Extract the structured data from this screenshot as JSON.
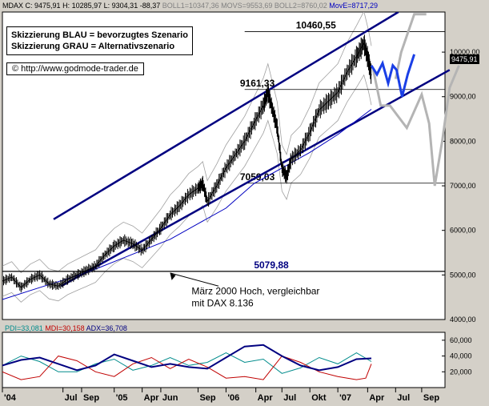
{
  "header": {
    "symbol": "MDAX",
    "close": "C: 9475,91",
    "high": "H: 10285,97",
    "low": "L: 9304,31",
    "change": "-88,37",
    "boll1": "BOLL1=10347,36",
    "movs": "MOVS=9553,69",
    "boll2": "BOLL2=8760,02",
    "move": "MovE=8717,29"
  },
  "legend": {
    "line1": "Skizzierung BLAU = bevorzugtes Szenario",
    "line2": "Skizzierung GRAU = Alternativszenario"
  },
  "source": "© http://www.godmode-trader.de",
  "last_price": "9475,91",
  "indicator_header": {
    "pdi": "PDI=33,081",
    "mdi": "MDI=30,158",
    "adx": "ADX=36,708"
  },
  "colors": {
    "background": "#d4d0c8",
    "price": "#000000",
    "boll": "#a0a0a0",
    "ma_long": "#0000c0",
    "channel": "#000080",
    "scenario_blue": "#1a3fe6",
    "scenario_gray": "#b4b4b4",
    "pdi": "#008c8c",
    "mdi": "#c00000",
    "adx": "#000080"
  },
  "chart_data": {
    "type": "line",
    "price_axis": {
      "ticks": [
        "10000,00",
        "9000,00",
        "8000,00",
        "7000,00",
        "6000,00",
        "5000,00",
        "4000,00"
      ],
      "tick_values": [
        10000,
        9000,
        8000,
        7000,
        6000,
        5000,
        4000
      ],
      "range": [
        4000,
        10900
      ]
    },
    "time_axis": {
      "labels": [
        "'04",
        "Jul",
        "Sep",
        "'05",
        "Apr",
        "Jun",
        "Sep",
        "'06",
        "Apr",
        "Jul",
        "Okt",
        "'07",
        "Apr",
        "Jul",
        "Sep"
      ],
      "label_t": [
        0,
        6.5,
        8.5,
        12,
        15,
        17,
        21,
        24,
        27.2,
        30,
        33,
        36,
        39.2,
        42.2,
        45
      ],
      "range": [
        0,
        47.5
      ]
    },
    "price_series": [
      {
        "t": 0,
        "v": 4860
      },
      {
        "t": 1,
        "v": 4950
      },
      {
        "t": 2,
        "v": 4720
      },
      {
        "t": 3,
        "v": 4900
      },
      {
        "t": 4,
        "v": 5000
      },
      {
        "t": 5,
        "v": 4800
      },
      {
        "t": 6,
        "v": 4750
      },
      {
        "t": 7,
        "v": 4900
      },
      {
        "t": 8,
        "v": 5000
      },
      {
        "t": 9,
        "v": 5100
      },
      {
        "t": 10,
        "v": 5200
      },
      {
        "t": 11,
        "v": 5450
      },
      {
        "t": 12,
        "v": 5650
      },
      {
        "t": 13,
        "v": 5780
      },
      {
        "t": 14,
        "v": 5700
      },
      {
        "t": 15,
        "v": 5550
      },
      {
        "t": 16,
        "v": 5800
      },
      {
        "t": 17,
        "v": 6050
      },
      {
        "t": 18,
        "v": 6350
      },
      {
        "t": 19,
        "v": 6550
      },
      {
        "t": 20,
        "v": 6800
      },
      {
        "t": 21,
        "v": 6950
      },
      {
        "t": 21.5,
        "v": 7050
      },
      {
        "t": 22,
        "v": 6650
      },
      {
        "t": 23,
        "v": 7000
      },
      {
        "t": 24,
        "v": 7400
      },
      {
        "t": 25,
        "v": 7700
      },
      {
        "t": 26,
        "v": 8000
      },
      {
        "t": 27,
        "v": 8400
      },
      {
        "t": 28,
        "v": 8800
      },
      {
        "t": 28.5,
        "v": 9100
      },
      {
        "t": 29,
        "v": 8700
      },
      {
        "t": 29.5,
        "v": 8300
      },
      {
        "t": 30,
        "v": 7400
      },
      {
        "t": 30.5,
        "v": 7200
      },
      {
        "t": 31,
        "v": 7600
      },
      {
        "t": 32,
        "v": 7800
      },
      {
        "t": 33,
        "v": 8200
      },
      {
        "t": 34,
        "v": 8700
      },
      {
        "t": 35,
        "v": 8900
      },
      {
        "t": 36,
        "v": 9100
      },
      {
        "t": 37,
        "v": 9550
      },
      {
        "t": 38,
        "v": 9900
      },
      {
        "t": 38.8,
        "v": 10200
      },
      {
        "t": 39.3,
        "v": 9800
      },
      {
        "t": 39.6,
        "v": 9476
      }
    ],
    "ma_long": [
      {
        "t": 0,
        "v": 4450
      },
      {
        "t": 3,
        "v": 4650
      },
      {
        "t": 6,
        "v": 4850
      },
      {
        "t": 9,
        "v": 5050
      },
      {
        "t": 12,
        "v": 5300
      },
      {
        "t": 15,
        "v": 5550
      },
      {
        "t": 18,
        "v": 5800
      },
      {
        "t": 21,
        "v": 6150
      },
      {
        "t": 24,
        "v": 6500
      },
      {
        "t": 27,
        "v": 7050
      },
      {
        "t": 30,
        "v": 7400
      },
      {
        "t": 33,
        "v": 7750
      },
      {
        "t": 36,
        "v": 8150
      },
      {
        "t": 39.6,
        "v": 8717
      }
    ],
    "levels": [
      {
        "label": "10460,55",
        "value": 10460.55
      },
      {
        "label": "9161,33",
        "value": 9161.33
      },
      {
        "label": "7059,03",
        "value": 7059.03
      },
      {
        "label": "5079,88",
        "value": 5079.88
      }
    ],
    "channel_upper": [
      {
        "t": 5.5,
        "v": 6250
      },
      {
        "t": 42.5,
        "v": 10900
      }
    ],
    "channel_lower": [
      {
        "t": 6.3,
        "v": 4750
      },
      {
        "t": 48,
        "v": 9600
      }
    ],
    "scenario_blue": [
      {
        "t": 39.6,
        "v": 9700
      },
      {
        "t": 40.2,
        "v": 9500
      },
      {
        "t": 40.8,
        "v": 9750
      },
      {
        "t": 41.4,
        "v": 9300
      },
      {
        "t": 41.9,
        "v": 9700
      },
      {
        "t": 42.3,
        "v": 9600
      },
      {
        "t": 42.9,
        "v": 9000
      },
      {
        "t": 43.5,
        "v": 9500
      },
      {
        "t": 44.2,
        "v": 9950
      }
    ],
    "scenario_gray": [
      {
        "t": 39.8,
        "v": 9600
      },
      {
        "t": 40.6,
        "v": 8800
      },
      {
        "t": 41.6,
        "v": 8800
      },
      {
        "t": 43.4,
        "v": 8300
      },
      {
        "t": 45,
        "v": 9050
      },
      {
        "t": 45.8,
        "v": 8400
      },
      {
        "t": 46.4,
        "v": 7000
      },
      {
        "t": 47.2,
        "v": 8000
      },
      {
        "t": 48,
        "v": 9200
      },
      {
        "t": 49,
        "v": 9700
      }
    ],
    "scenario_gray_up": [
      {
        "t": 42.2,
        "v": 9400
      },
      {
        "t": 42.8,
        "v": 10000
      },
      {
        "t": 44.2,
        "v": 10850
      },
      {
        "t": 45.5,
        "v": 10850
      }
    ],
    "annotation": {
      "line1": "März 2000 Hoch, vergleichbar",
      "line2": "mit DAX 8.136",
      "arrow_from": {
        "t": 23.2,
        "v": 4750
      },
      "arrow_to": {
        "t": 18,
        "v": 5079.88
      }
    },
    "indicator_axis": {
      "ticks": [
        "60,000",
        "40,000",
        "20,000"
      ],
      "tick_values": [
        60,
        40,
        20
      ],
      "range": [
        0,
        70
      ]
    },
    "pdi": [
      {
        "t": 0,
        "v": 28
      },
      {
        "t": 2,
        "v": 40
      },
      {
        "t": 4,
        "v": 33
      },
      {
        "t": 6,
        "v": 20
      },
      {
        "t": 8,
        "v": 20
      },
      {
        "t": 10,
        "v": 30
      },
      {
        "t": 12,
        "v": 36
      },
      {
        "t": 14,
        "v": 22
      },
      {
        "t": 16,
        "v": 28
      },
      {
        "t": 18,
        "v": 38
      },
      {
        "t": 20,
        "v": 28
      },
      {
        "t": 22,
        "v": 32
      },
      {
        "t": 24,
        "v": 44
      },
      {
        "t": 26,
        "v": 32
      },
      {
        "t": 28,
        "v": 36
      },
      {
        "t": 30,
        "v": 18
      },
      {
        "t": 32,
        "v": 25
      },
      {
        "t": 34,
        "v": 38
      },
      {
        "t": 36,
        "v": 30
      },
      {
        "t": 38,
        "v": 44
      },
      {
        "t": 39.6,
        "v": 33
      }
    ],
    "mdi": [
      {
        "t": 0,
        "v": 20
      },
      {
        "t": 2,
        "v": 10
      },
      {
        "t": 4,
        "v": 14
      },
      {
        "t": 6,
        "v": 40
      },
      {
        "t": 8,
        "v": 34
      },
      {
        "t": 10,
        "v": 20
      },
      {
        "t": 12,
        "v": 14
      },
      {
        "t": 14,
        "v": 30
      },
      {
        "t": 16,
        "v": 38
      },
      {
        "t": 18,
        "v": 24
      },
      {
        "t": 20,
        "v": 36
      },
      {
        "t": 22,
        "v": 26
      },
      {
        "t": 24,
        "v": 12
      },
      {
        "t": 26,
        "v": 14
      },
      {
        "t": 28,
        "v": 10
      },
      {
        "t": 30,
        "v": 40
      },
      {
        "t": 32,
        "v": 32
      },
      {
        "t": 34,
        "v": 20
      },
      {
        "t": 36,
        "v": 14
      },
      {
        "t": 38,
        "v": 10
      },
      {
        "t": 39,
        "v": 12
      },
      {
        "t": 39.6,
        "v": 30
      }
    ],
    "adx": [
      {
        "t": 0,
        "v": 28
      },
      {
        "t": 2,
        "v": 35
      },
      {
        "t": 4,
        "v": 38
      },
      {
        "t": 6,
        "v": 30
      },
      {
        "t": 8,
        "v": 22
      },
      {
        "t": 10,
        "v": 28
      },
      {
        "t": 12,
        "v": 42
      },
      {
        "t": 14,
        "v": 34
      },
      {
        "t": 16,
        "v": 26
      },
      {
        "t": 18,
        "v": 30
      },
      {
        "t": 20,
        "v": 26
      },
      {
        "t": 22,
        "v": 24
      },
      {
        "t": 24,
        "v": 38
      },
      {
        "t": 26,
        "v": 52
      },
      {
        "t": 28,
        "v": 54
      },
      {
        "t": 30,
        "v": 40
      },
      {
        "t": 32,
        "v": 28
      },
      {
        "t": 34,
        "v": 22
      },
      {
        "t": 36,
        "v": 26
      },
      {
        "t": 38,
        "v": 36
      },
      {
        "t": 39.6,
        "v": 37
      }
    ]
  }
}
